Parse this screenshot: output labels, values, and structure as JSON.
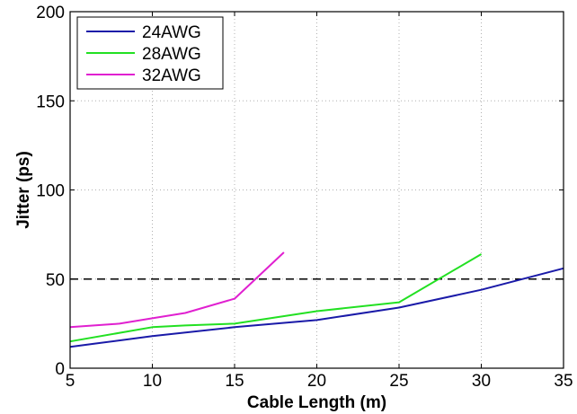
{
  "chart_data": {
    "type": "line",
    "xlabel": "Cable Length (m)",
    "ylabel": "Jitter (ps)",
    "xlim": [
      5,
      35
    ],
    "ylim": [
      0,
      200
    ],
    "xticks": [
      "5",
      "10",
      "15",
      "20",
      "25",
      "30",
      "35"
    ],
    "yticks": [
      "0",
      "50",
      "100",
      "150",
      "200"
    ],
    "grid": true,
    "legend_position": "top-left",
    "reference_line": {
      "y": 50,
      "style": "dashed",
      "color": "#000000"
    },
    "series": [
      {
        "name": "24AWG",
        "color": "#1a1aa8",
        "x": [
          5,
          10,
          15,
          20,
          25,
          30,
          35
        ],
        "y": [
          12,
          18,
          23,
          27,
          34,
          44,
          56
        ]
      },
      {
        "name": "28AWG",
        "color": "#22e022",
        "x": [
          5,
          10,
          12,
          15,
          20,
          25,
          30
        ],
        "y": [
          15,
          23,
          24,
          25,
          32,
          37,
          64
        ]
      },
      {
        "name": "32AWG",
        "color": "#e020d0",
        "x": [
          5,
          8,
          10,
          12,
          15,
          18
        ],
        "y": [
          23,
          25,
          28,
          31,
          39,
          65
        ]
      }
    ]
  }
}
